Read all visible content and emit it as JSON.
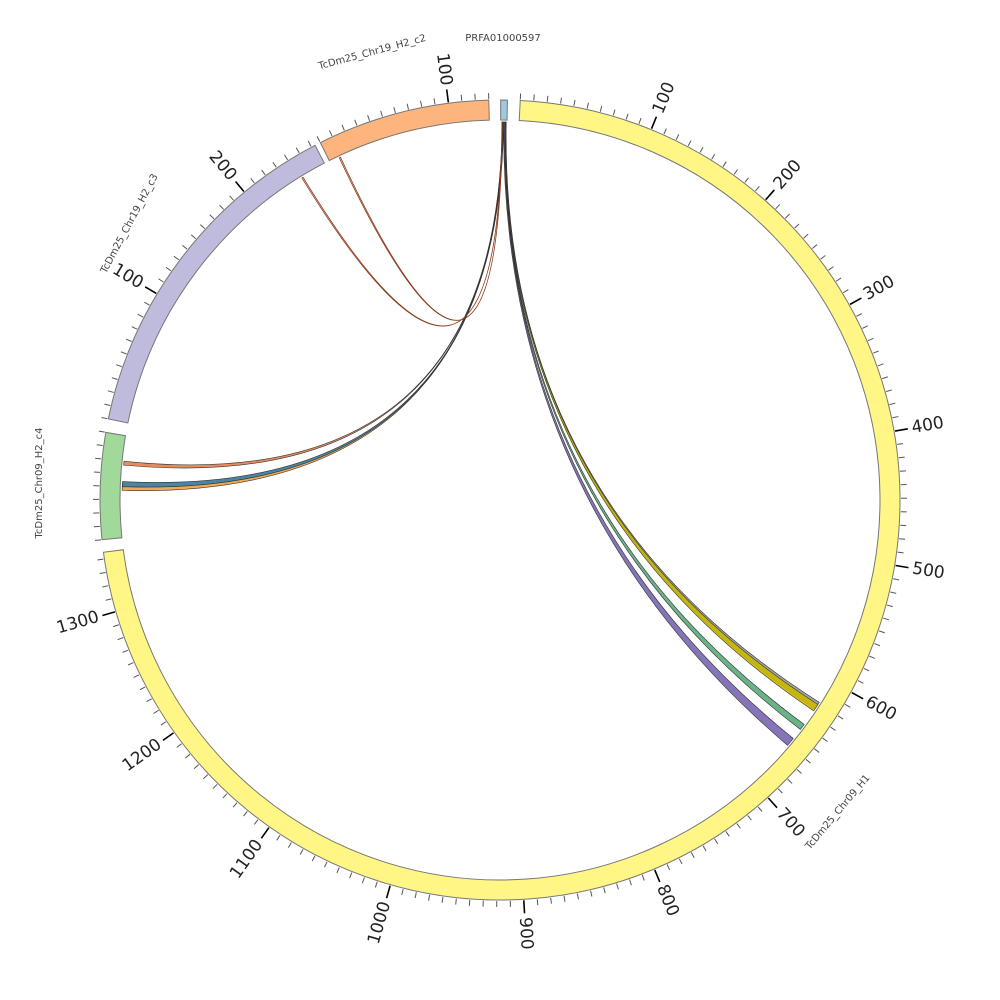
{
  "chart_data": {
    "type": "chord",
    "title": "",
    "units_per_major_tick": 100,
    "units_per_minor_tick": 10,
    "chromosomes": [
      {
        "id": "PRFA01000597",
        "label": "PRFA01000597",
        "length": 5,
        "color": "#9ecae1"
      },
      {
        "id": "H1",
        "label": "TcDm25_Chr09_H1",
        "length": 1345,
        "color": "#fff685"
      },
      {
        "id": "c4",
        "label": "TcDm25_Chr09_H2_c4",
        "length": 80,
        "color": "#a1d99b"
      },
      {
        "id": "c3",
        "label": "TcDm25_Chr19_H2_c3",
        "length": 263,
        "color": "#bfbbdc"
      },
      {
        "id": "c2",
        "label": "TcDm25_Chr19_H2_c2",
        "length": 130,
        "color": "#fdb47d"
      }
    ],
    "tick_labels": {
      "H1": [
        "100",
        "200",
        "300",
        "400",
        "500",
        "600",
        "700",
        "800",
        "900",
        "1000",
        "1100",
        "1200",
        "1300"
      ],
      "c4": [],
      "c3": [
        "100",
        "200"
      ],
      "c2": [
        "100"
      ],
      "PRFA01000597": []
    },
    "links": [
      {
        "source": [
          "PRFA01000597",
          3.8,
          4.4
        ],
        "target": [
          "H1",
          619,
          625
        ],
        "color": "#9a9a9a"
      },
      {
        "source": [
          "PRFA01000597",
          3.4,
          4.0
        ],
        "target": [
          "H1",
          621,
          627
        ],
        "color": "#c9b800"
      },
      {
        "source": [
          "PRFA01000597",
          3.0,
          3.5
        ],
        "target": [
          "H1",
          640,
          645
        ],
        "color": "#5aab7a"
      },
      {
        "source": [
          "PRFA01000597",
          2.4,
          3.1
        ],
        "target": [
          "H1",
          654,
          661
        ],
        "color": "#7866b0"
      },
      {
        "source": [
          "PRFA01000597",
          1.2,
          1.6
        ],
        "target": [
          "c4",
          57,
          60
        ],
        "color": "#e57e4e"
      },
      {
        "source": [
          "PRFA01000597",
          1.6,
          2.3
        ],
        "target": [
          "c4",
          40,
          44
        ],
        "color": "#35789a"
      },
      {
        "source": [
          "PRFA01000597",
          1.3,
          1.8
        ],
        "target": [
          "c4",
          37,
          40
        ],
        "color": "#f0a040"
      },
      {
        "source": [
          "PRFA01000597",
          1.0,
          1.1
        ],
        "target": [
          "c3",
          242,
          243
        ],
        "color": "#8b3a1a"
      },
      {
        "source": [
          "PRFA01000597",
          1.1,
          1.2
        ],
        "target": [
          "c2",
          8,
          9
        ],
        "color": "#8b3a1a"
      }
    ]
  }
}
